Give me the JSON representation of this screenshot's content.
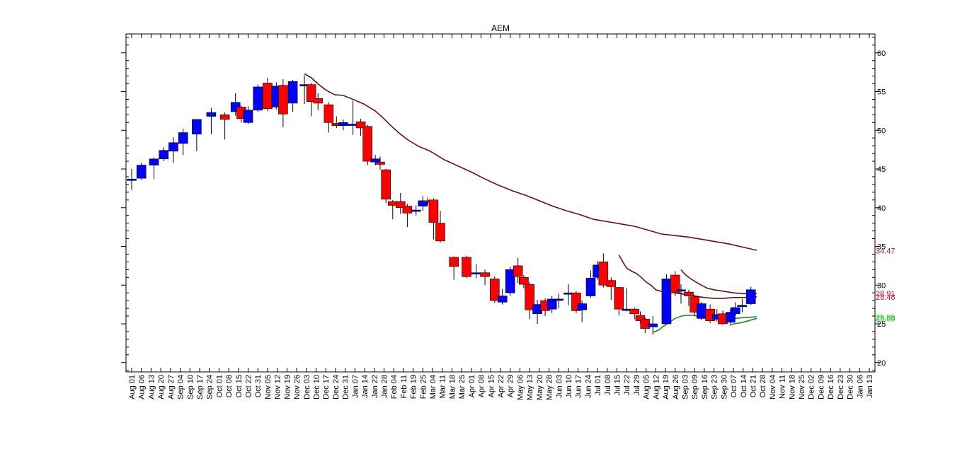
{
  "chart_data": {
    "type": "candlestick",
    "title": "AEM",
    "xlabel": "",
    "ylabel": "",
    "ylim": [
      19,
      62
    ],
    "y_ticks": [
      20,
      25,
      30,
      35,
      40,
      45,
      50,
      55,
      60
    ],
    "grid": false,
    "x_tick_labels": [
      "Aug 01",
      "Aug 06",
      "Aug 13",
      "Aug 20",
      "Aug 27",
      "Sep 04",
      "Sep 10",
      "Sep 17",
      "Sep 24",
      "Oct 01",
      "Oct 08",
      "Oct 15",
      "Oct 22",
      "Oct 31",
      "Nov 05",
      "Nov 12",
      "Nov 19",
      "Nov 26",
      "Dec 03",
      "Dec 10",
      "Dec 17",
      "Dec 24",
      "Dec 31",
      "Jan 07",
      "Jan 14",
      "Jan 22",
      "Jan 28",
      "Feb 04",
      "Feb 11",
      "Feb 19",
      "Feb 25",
      "Mar 04",
      "Mar 11",
      "Mar 18",
      "Mar 25",
      "Apr 01",
      "Apr 08",
      "Apr 15",
      "Apr 22",
      "Apr 29",
      "May 06",
      "May 13",
      "May 20",
      "May 28",
      "Jun 03",
      "Jun 10",
      "Jun 17",
      "Jun 24",
      "Jul 01",
      "Jul 08",
      "Jul 15",
      "Jul 22",
      "Jul 29",
      "Aug 05",
      "Aug 12",
      "Aug 19",
      "Aug 26",
      "Sep 03",
      "Sep 09",
      "Sep 16",
      "Sep 23",
      "Sep 30",
      "Oct 07",
      "Oct 14",
      "Oct 21",
      "Oct 28",
      "Nov 04",
      "Nov 11",
      "Nov 18",
      "Nov 25",
      "Dec 02",
      "Dec 09",
      "Dec 16",
      "Dec 23",
      "Dec 30",
      "Jan 06",
      "Jan 13"
    ],
    "candles": [
      {
        "x": 0.0,
        "open": 43.7,
        "close": 43.7,
        "high": 45.0,
        "low": 42.3
      },
      {
        "x": 1.0,
        "open": 43.8,
        "close": 45.5,
        "high": 45.8,
        "low": 43.6
      },
      {
        "x": 2.3,
        "open": 45.5,
        "close": 46.3,
        "high": 46.5,
        "low": 43.7
      },
      {
        "x": 3.3,
        "open": 46.3,
        "close": 47.4,
        "high": 47.8,
        "low": 46.0
      },
      {
        "x": 4.3,
        "open": 47.3,
        "close": 48.4,
        "high": 49.1,
        "low": 45.8
      },
      {
        "x": 5.3,
        "open": 48.3,
        "close": 49.7,
        "high": 50.2,
        "low": 46.8
      },
      {
        "x": 6.7,
        "open": 49.5,
        "close": 51.4,
        "high": 51.4,
        "low": 47.3
      },
      {
        "x": 8.2,
        "open": 51.8,
        "close": 52.3,
        "high": 52.9,
        "low": 49.5
      },
      {
        "x": 9.6,
        "open": 52.0,
        "close": 51.4,
        "high": 52.3,
        "low": 48.8
      },
      {
        "x": 10.7,
        "open": 52.4,
        "close": 53.6,
        "high": 54.8,
        "low": 51.9
      },
      {
        "x": 11.3,
        "open": 53.0,
        "close": 51.5,
        "high": 53.2,
        "low": 51.0
      },
      {
        "x": 12.0,
        "open": 51.0,
        "close": 52.6,
        "high": 53.1,
        "low": 50.8
      },
      {
        "x": 13.0,
        "open": 52.6,
        "close": 55.6,
        "high": 55.9,
        "low": 52.4
      },
      {
        "x": 14.0,
        "open": 56.1,
        "close": 52.8,
        "high": 56.8,
        "low": 52.5
      },
      {
        "x": 14.9,
        "open": 53.0,
        "close": 55.7,
        "high": 56.2,
        "low": 52.7
      },
      {
        "x": 15.6,
        "open": 55.8,
        "close": 52.1,
        "high": 56.6,
        "low": 50.4
      },
      {
        "x": 16.6,
        "open": 53.5,
        "close": 56.3,
        "high": 56.5,
        "low": 52.4
      },
      {
        "x": 17.8,
        "open": 55.9,
        "close": 55.9,
        "high": 57.1,
        "low": 53.4
      },
      {
        "x": 18.5,
        "open": 55.9,
        "close": 53.7,
        "high": 56.1,
        "low": 51.8
      },
      {
        "x": 19.2,
        "open": 54.1,
        "close": 53.5,
        "high": 54.8,
        "low": 52.6
      },
      {
        "x": 20.3,
        "open": 53.3,
        "close": 51.0,
        "high": 53.6,
        "low": 49.7
      },
      {
        "x": 21.1,
        "open": 50.9,
        "close": 50.6,
        "high": 51.8,
        "low": 50.3
      },
      {
        "x": 21.8,
        "open": 50.6,
        "close": 51.0,
        "high": 51.4,
        "low": 50.0
      },
      {
        "x": 22.8,
        "open": 50.7,
        "close": 50.8,
        "high": 53.8,
        "low": 49.4
      },
      {
        "x": 23.6,
        "open": 51.1,
        "close": 50.3,
        "high": 51.5,
        "low": 49.3
      },
      {
        "x": 24.3,
        "open": 50.5,
        "close": 46.0,
        "high": 50.7,
        "low": 45.5
      },
      {
        "x": 25.1,
        "open": 45.9,
        "close": 46.3,
        "high": 46.8,
        "low": 45.5
      },
      {
        "x": 25.6,
        "open": 45.9,
        "close": 45.6,
        "high": 46.6,
        "low": 44.9
      },
      {
        "x": 26.2,
        "open": 44.9,
        "close": 41.1,
        "high": 45.0,
        "low": 40.6
      },
      {
        "x": 26.9,
        "open": 40.8,
        "close": 40.3,
        "high": 41.0,
        "low": 38.5
      },
      {
        "x": 27.7,
        "open": 40.8,
        "close": 40.0,
        "high": 41.9,
        "low": 39.2
      },
      {
        "x": 28.4,
        "open": 40.2,
        "close": 39.3,
        "high": 40.5,
        "low": 37.5
      },
      {
        "x": 29.3,
        "open": 39.7,
        "close": 39.7,
        "high": 40.3,
        "low": 39.0
      },
      {
        "x": 30.0,
        "open": 40.2,
        "close": 40.9,
        "high": 41.5,
        "low": 39.6
      },
      {
        "x": 30.5,
        "open": 40.9,
        "close": 40.8,
        "high": 41.3,
        "low": 40.4
      },
      {
        "x": 31.1,
        "open": 41.0,
        "close": 38.1,
        "high": 41.2,
        "low": 35.9
      },
      {
        "x": 31.8,
        "open": 38.0,
        "close": 35.7,
        "high": 39.6,
        "low": 35.5
      },
      {
        "x": 33.2,
        "open": 33.6,
        "close": 32.4,
        "high": 33.7,
        "low": 30.7
      },
      {
        "x": 34.5,
        "open": 33.6,
        "close": 31.1,
        "high": 33.8,
        "low": 30.9
      },
      {
        "x": 35.5,
        "open": 31.6,
        "close": 31.6,
        "high": 32.7,
        "low": 30.9
      },
      {
        "x": 36.4,
        "open": 31.6,
        "close": 31.1,
        "high": 32.0,
        "low": 30.0
      },
      {
        "x": 37.4,
        "open": 30.8,
        "close": 28.0,
        "high": 31.1,
        "low": 27.7
      },
      {
        "x": 38.2,
        "open": 27.8,
        "close": 28.6,
        "high": 29.5,
        "low": 27.5
      },
      {
        "x": 39.0,
        "open": 29.0,
        "close": 32.0,
        "high": 32.4,
        "low": 28.6
      },
      {
        "x": 39.8,
        "open": 32.5,
        "close": 31.1,
        "high": 33.5,
        "low": 30.3
      },
      {
        "x": 40.4,
        "open": 31.0,
        "close": 30.1,
        "high": 31.3,
        "low": 29.6
      },
      {
        "x": 41.0,
        "open": 30.1,
        "close": 26.8,
        "high": 30.4,
        "low": 25.6
      },
      {
        "x": 41.8,
        "open": 26.3,
        "close": 27.5,
        "high": 28.1,
        "low": 25.0
      },
      {
        "x": 42.6,
        "open": 28.0,
        "close": 26.7,
        "high": 28.3,
        "low": 26.0
      },
      {
        "x": 43.3,
        "open": 26.9,
        "close": 28.2,
        "high": 28.6,
        "low": 26.4
      },
      {
        "x": 44.0,
        "open": 28.2,
        "close": 28.2,
        "high": 28.9,
        "low": 27.0
      },
      {
        "x": 45.0,
        "open": 29.0,
        "close": 29.0,
        "high": 30.1,
        "low": 27.4
      },
      {
        "x": 45.8,
        "open": 29.0,
        "close": 26.7,
        "high": 29.2,
        "low": 26.4
      },
      {
        "x": 46.4,
        "open": 26.8,
        "close": 27.6,
        "high": 28.0,
        "low": 25.2
      },
      {
        "x": 47.3,
        "open": 28.6,
        "close": 30.9,
        "high": 31.9,
        "low": 28.4
      },
      {
        "x": 48.0,
        "open": 31.0,
        "close": 32.6,
        "high": 33.1,
        "low": 30.7
      },
      {
        "x": 48.6,
        "open": 33.0,
        "close": 30.0,
        "high": 34.1,
        "low": 29.7
      },
      {
        "x": 49.4,
        "open": 30.6,
        "close": 29.8,
        "high": 31.0,
        "low": 28.1
      },
      {
        "x": 50.2,
        "open": 29.7,
        "close": 26.9,
        "high": 29.8,
        "low": 26.1
      },
      {
        "x": 51.0,
        "open": 26.9,
        "close": 26.9,
        "high": 29.6,
        "low": 26.6
      },
      {
        "x": 51.8,
        "open": 26.9,
        "close": 26.3,
        "high": 27.1,
        "low": 25.6
      },
      {
        "x": 52.4,
        "open": 26.1,
        "close": 25.4,
        "high": 26.6,
        "low": 25.1
      },
      {
        "x": 52.9,
        "open": 25.6,
        "close": 24.4,
        "high": 25.8,
        "low": 23.8
      },
      {
        "x": 53.7,
        "open": 24.6,
        "close": 25.0,
        "high": 26.0,
        "low": 23.6
      },
      {
        "x": 55.1,
        "open": 25.0,
        "close": 30.8,
        "high": 31.4,
        "low": 25.0
      },
      {
        "x": 56.0,
        "open": 31.3,
        "close": 29.0,
        "high": 31.8,
        "low": 28.6
      },
      {
        "x": 56.6,
        "open": 29.4,
        "close": 29.4,
        "high": 30.1,
        "low": 27.6
      },
      {
        "x": 57.4,
        "open": 29.1,
        "close": 28.6,
        "high": 29.4,
        "low": 27.3
      },
      {
        "x": 58.0,
        "open": 28.5,
        "close": 26.5,
        "high": 28.7,
        "low": 26.0
      },
      {
        "x": 58.7,
        "open": 25.7,
        "close": 27.6,
        "high": 27.8,
        "low": 25.5
      },
      {
        "x": 59.6,
        "open": 26.9,
        "close": 25.4,
        "high": 27.5,
        "low": 25.1
      },
      {
        "x": 60.3,
        "open": 25.6,
        "close": 26.2,
        "high": 26.9,
        "low": 25.3
      },
      {
        "x": 60.9,
        "open": 26.3,
        "close": 25.0,
        "high": 26.7,
        "low": 24.9
      },
      {
        "x": 61.7,
        "open": 25.2,
        "close": 26.5,
        "high": 26.9,
        "low": 25.0
      },
      {
        "x": 62.2,
        "open": 26.3,
        "close": 27.1,
        "high": 27.8,
        "low": 26.0
      },
      {
        "x": 62.9,
        "open": 27.3,
        "close": 27.4,
        "high": 28.2,
        "low": 26.5
      },
      {
        "x": 63.8,
        "open": 27.6,
        "close": 29.4,
        "high": 29.8,
        "low": 27.4
      }
    ],
    "series": [
      {
        "color": "#6b0f0f",
        "points": [
          [
            17.8,
            57.3
          ],
          [
            18.5,
            56.8
          ],
          [
            19.2,
            56.0
          ],
          [
            20.0,
            55.2
          ],
          [
            20.9,
            54.6
          ],
          [
            21.8,
            54.5
          ],
          [
            22.8,
            54.0
          ],
          [
            23.9,
            53.4
          ],
          [
            25.1,
            52.5
          ],
          [
            25.9,
            51.6
          ],
          [
            26.7,
            50.6
          ],
          [
            27.6,
            49.6
          ],
          [
            28.4,
            48.8
          ],
          [
            29.6,
            47.9
          ],
          [
            30.6,
            47.4
          ],
          [
            31.3,
            46.9
          ],
          [
            32.2,
            46.2
          ],
          [
            33.6,
            45.4
          ],
          [
            35.0,
            44.6
          ],
          [
            36.4,
            43.7
          ],
          [
            37.8,
            42.9
          ],
          [
            39.2,
            42.2
          ],
          [
            40.6,
            41.6
          ],
          [
            42.0,
            40.9
          ],
          [
            43.4,
            40.2
          ],
          [
            44.8,
            39.6
          ],
          [
            46.2,
            39.1
          ],
          [
            47.6,
            38.5
          ],
          [
            49.0,
            38.2
          ],
          [
            50.4,
            37.9
          ],
          [
            51.8,
            37.6
          ],
          [
            53.2,
            37.1
          ],
          [
            54.6,
            36.6
          ],
          [
            56.0,
            36.4
          ],
          [
            57.4,
            36.2
          ],
          [
            58.8,
            35.9
          ],
          [
            60.2,
            35.6
          ],
          [
            61.6,
            35.3
          ],
          [
            63.0,
            34.9
          ],
          [
            64.4,
            34.5
          ]
        ]
      },
      {
        "color": "#6b0f0f",
        "points": [
          [
            50.2,
            33.9
          ],
          [
            50.6,
            33.0
          ],
          [
            51.0,
            32.2
          ],
          [
            51.5,
            31.8
          ],
          [
            52.0,
            31.5
          ],
          [
            52.5,
            31.0
          ],
          [
            53.0,
            30.4
          ],
          [
            53.5,
            30.0
          ],
          [
            54.0,
            29.4
          ],
          [
            54.5,
            29.2
          ],
          [
            55.1,
            29.1
          ],
          [
            56.0,
            29.0
          ],
          [
            57.0,
            28.8
          ],
          [
            58.0,
            28.6
          ],
          [
            59.0,
            28.4
          ],
          [
            60.0,
            28.3
          ],
          [
            61.0,
            28.3
          ],
          [
            62.0,
            28.4
          ],
          [
            63.0,
            28.4
          ],
          [
            64.4,
            28.5
          ]
        ]
      },
      {
        "color": "#6b0f0f",
        "points": [
          [
            56.6,
            32.0
          ],
          [
            57.0,
            31.4
          ],
          [
            57.5,
            30.9
          ],
          [
            58.0,
            30.5
          ],
          [
            58.7,
            30.0
          ],
          [
            59.3,
            29.6
          ],
          [
            60.0,
            29.4
          ],
          [
            61.0,
            29.2
          ],
          [
            62.0,
            29.0
          ],
          [
            63.0,
            28.9
          ],
          [
            64.4,
            28.9
          ]
        ]
      },
      {
        "color": "#1f8a1f",
        "points": [
          [
            53.7,
            23.9
          ],
          [
            54.3,
            24.2
          ],
          [
            54.8,
            24.7
          ],
          [
            55.4,
            25.2
          ],
          [
            56.0,
            25.7
          ],
          [
            56.6,
            26.0
          ],
          [
            57.2,
            26.1
          ],
          [
            57.8,
            26.1
          ],
          [
            58.4,
            26.0
          ],
          [
            59.0,
            25.9
          ],
          [
            59.6,
            25.8
          ],
          [
            60.2,
            25.7
          ],
          [
            60.9,
            25.7
          ],
          [
            61.6,
            25.7
          ],
          [
            62.3,
            25.7
          ],
          [
            63.0,
            25.8
          ],
          [
            64.4,
            25.9
          ]
        ]
      },
      {
        "color": "#1f8a1f",
        "points": [
          [
            61.6,
            24.8
          ],
          [
            62.0,
            25.0
          ],
          [
            62.6,
            25.1
          ],
          [
            63.3,
            25.3
          ],
          [
            64.4,
            25.7
          ]
        ]
      }
    ],
    "right_labels": [
      {
        "text": "34.47",
        "value": 34.47,
        "color": "#c8102e"
      },
      {
        "text": "28.91",
        "value": 28.91,
        "color": "#c8102e"
      },
      {
        "text": "28.48",
        "value": 28.48,
        "color": "#c8102e"
      },
      {
        "text": "25.89",
        "value": 25.89,
        "color": "#22cc22"
      },
      {
        "text": "25.69",
        "value": 25.69,
        "color": "#22cc22"
      }
    ],
    "up_color": "#0000ff",
    "down_color": "#ff0000"
  }
}
